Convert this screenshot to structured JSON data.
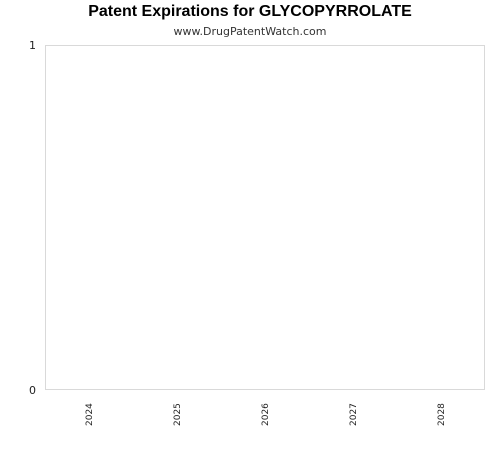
{
  "chart_data": {
    "type": "bar",
    "title": "Patent Expirations for GLYCOPYRROLATE",
    "subtitle": "www.DrugPatentWatch.com",
    "xlabel": "",
    "ylabel": "",
    "categories": [
      "2024",
      "2025",
      "2026",
      "2027",
      "2028"
    ],
    "values": [
      0,
      0,
      0,
      0,
      0
    ],
    "ylim": [
      0,
      1
    ],
    "yticks": [
      "0",
      "1"
    ],
    "grid": false,
    "legend": "none",
    "colors": {
      "plot_border": "#d9d9d9",
      "text": "#222222"
    }
  }
}
